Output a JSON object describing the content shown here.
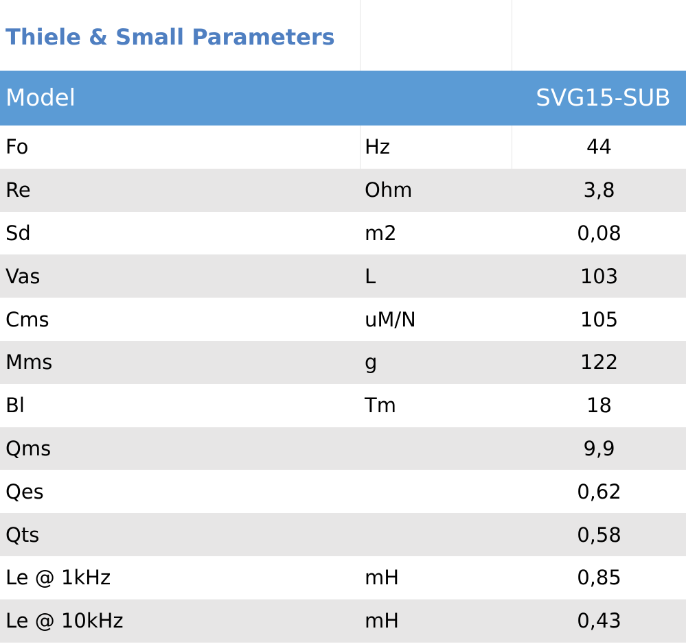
{
  "table": {
    "title": "Thiele & Small Parameters",
    "header": {
      "label": "Model",
      "unit": "",
      "value": "SVG15-SUB"
    },
    "rows": [
      {
        "param": "Fo",
        "unit": "Hz",
        "value": "44"
      },
      {
        "param": "Re",
        "unit": "Ohm",
        "value": "3,8"
      },
      {
        "param": "Sd",
        "unit": "m2",
        "value": "0,08"
      },
      {
        "param": "Vas",
        "unit": "L",
        "value": "103"
      },
      {
        "param": "Cms",
        "unit": "uM/N",
        "value": "105"
      },
      {
        "param": "Mms",
        "unit": "g",
        "value": "122"
      },
      {
        "param": "Bl",
        "unit": "Tm",
        "value": "18"
      },
      {
        "param": "Qms",
        "unit": "",
        "value": "9,9"
      },
      {
        "param": "Qes",
        "unit": "",
        "value": "0,62"
      },
      {
        "param": "Qts",
        "unit": "",
        "value": "0,58"
      },
      {
        "param": "Le @ 1kHz",
        "unit": "mH",
        "value": "0,85"
      },
      {
        "param": "Le @ 10kHz",
        "unit": "mH",
        "value": "0,43"
      }
    ]
  },
  "colors": {
    "title": "#4f7fc1",
    "header_bg": "#5b9bd5",
    "header_text": "#ffffff",
    "stripe": "#e7e6e6"
  }
}
